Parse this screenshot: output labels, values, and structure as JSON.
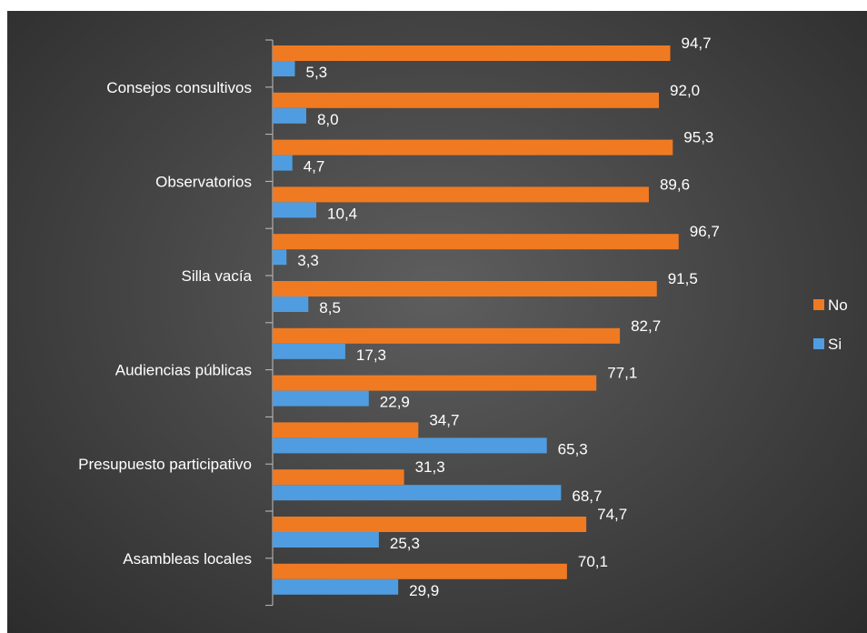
{
  "chart_data": {
    "type": "bar",
    "orientation": "horizontal",
    "category_labels": [
      "Consejos consultivos",
      "Observatorios",
      "Silla vacía",
      "Audiencias públicas",
      "Presupuesto participativo",
      "Asambleas locales"
    ],
    "bars_per_category": 2,
    "series": [
      {
        "name": "No",
        "color": "#f07a22",
        "values": [
          94.7,
          92.0,
          95.3,
          89.6,
          96.7,
          91.5,
          82.7,
          77.1,
          34.7,
          31.3,
          74.7,
          70.1
        ],
        "display": [
          "94,7",
          "92,0",
          "95,3",
          "89,6",
          "96,7",
          "91,5",
          "82,7",
          "77,1",
          "34,7",
          "31,3",
          "74,7",
          "70,1"
        ]
      },
      {
        "name": "Si",
        "color": "#4f9de0",
        "values": [
          5.3,
          8.0,
          4.7,
          10.4,
          3.3,
          8.5,
          17.3,
          22.9,
          65.3,
          68.7,
          25.3,
          29.9
        ],
        "display": [
          "5,3",
          "8,0",
          "4,7",
          "10,4",
          "3,3",
          "8,5",
          "17,3",
          "22,9",
          "65,3",
          "68,7",
          "25,3",
          "29,9"
        ]
      }
    ],
    "xlim": [
      0,
      100
    ],
    "legend": {
      "position": "right",
      "items": [
        "No",
        "Si"
      ]
    },
    "grid": false
  }
}
